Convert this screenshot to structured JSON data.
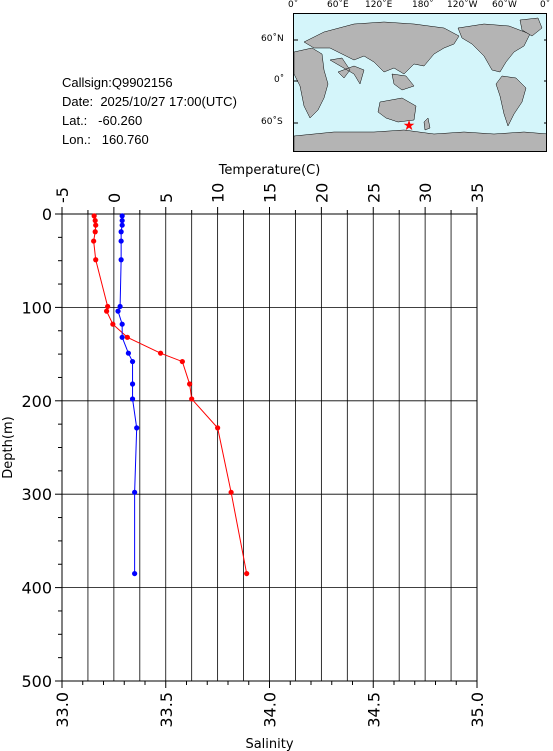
{
  "station": {
    "callsign_label": "Callsign:",
    "callsign": "Q9902156",
    "date_label": "Date:",
    "date": "2025/10/27 17:00(UTC)",
    "lat_label": "Lat.:",
    "lat": "-60.260",
    "lon_label": "Lon.:",
    "lon": "160.760"
  },
  "map": {
    "top_labels": [
      "0˚",
      "60˚E",
      "120˚E",
      "180˚",
      "120˚W",
      "60˚W",
      "0˚"
    ],
    "left_labels": [
      "60˚N",
      "0˚",
      "60˚S"
    ],
    "ocean_color": "#d4f5fa",
    "land_color": "#b4b4b4",
    "marker_color": "#ff0000",
    "marker_icon": "star-icon"
  },
  "chart_data": {
    "type": "line",
    "y_axis": {
      "label": "Depth(m)",
      "range": [
        0,
        500
      ],
      "reversed": true,
      "ticks": [
        "0",
        "100",
        "200",
        "300",
        "400",
        "500"
      ]
    },
    "x_axis_top": {
      "label": "Temperature(C)",
      "range": [
        -5,
        35
      ],
      "ticks": [
        "-5",
        "0",
        "5",
        "10",
        "15",
        "20",
        "25",
        "30",
        "35"
      ]
    },
    "x_axis_bottom": {
      "label": "Salinity",
      "range": [
        33.0,
        35.0
      ],
      "ticks": [
        "33.0",
        "33.5",
        "34.0",
        "34.5",
        "35.0"
      ]
    },
    "grid": true,
    "series": [
      {
        "axis": "top",
        "color": "#ff0000",
        "depth": [
          2,
          7,
          12,
          19,
          29,
          49,
          99,
          104,
          118,
          132,
          149,
          158,
          182,
          198,
          229,
          298,
          385
        ],
        "values": [
          -1.9,
          -1.8,
          -1.75,
          -1.8,
          -1.95,
          -1.75,
          -0.6,
          -0.7,
          -0.1,
          1.3,
          4.5,
          6.6,
          7.3,
          7.5,
          10.0,
          11.3,
          12.8
        ]
      },
      {
        "axis": "bottom",
        "color": "#0000ff",
        "depth": [
          2,
          7,
          12,
          19,
          29,
          49,
          99,
          104,
          118,
          132,
          149,
          158,
          182,
          198,
          229,
          298,
          385
        ],
        "values": [
          33.29,
          33.29,
          33.29,
          33.285,
          33.285,
          33.285,
          33.28,
          33.27,
          33.29,
          33.29,
          33.32,
          33.34,
          33.34,
          33.34,
          33.36,
          33.35,
          33.35
        ]
      }
    ]
  }
}
